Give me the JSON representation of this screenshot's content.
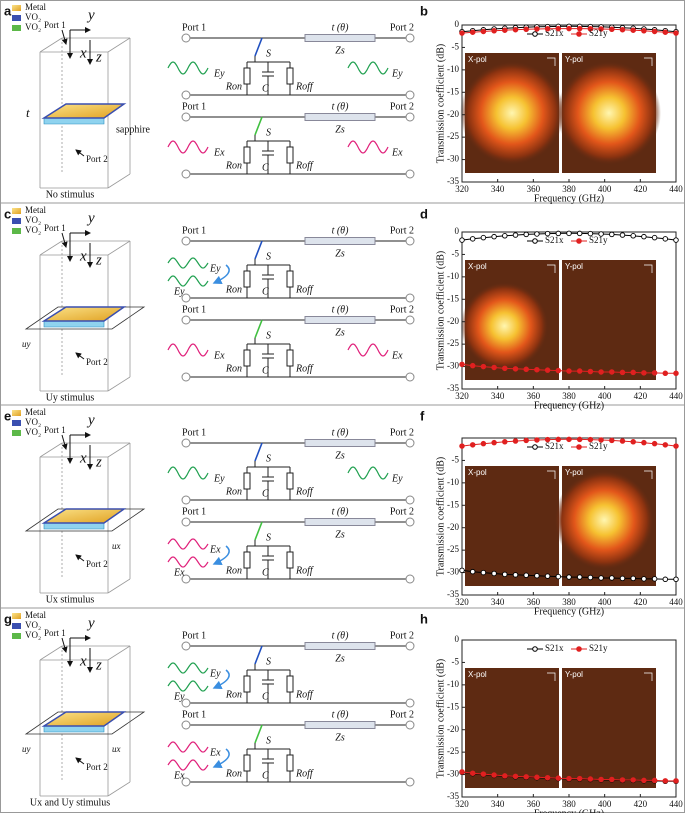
{
  "panels": [
    {
      "label": "a",
      "legend": [
        "Metal",
        "VO₂",
        "VO₂"
      ],
      "axes": [
        "y",
        "x",
        "z"
      ],
      "ports": [
        "Port 1",
        "Port 2"
      ],
      "thickness": "t",
      "substrate": "sapphire",
      "caption": "No stimulus",
      "circuits": [
        {
          "port_in": "Port 1",
          "port_out": "Port 2",
          "line": "t (θ)",
          "impedance": "Zs",
          "switch": "S",
          "r_on": "Ron",
          "cap": "C",
          "r_off": "Roff",
          "wave_in": "Ey",
          "wave_out": "Ey"
        },
        {
          "port_in": "Port 1",
          "port_out": "Port 2",
          "line": "t (θ)",
          "impedance": "Zs",
          "switch": "S",
          "r_on": "Ron",
          "cap": "C",
          "r_off": "Roff",
          "wave_in": "Ex",
          "wave_out": "Ex"
        }
      ]
    },
    {
      "label": "c",
      "legend": [
        "Metal",
        "VO₂",
        "VO₂"
      ],
      "axes": [
        "y",
        "x",
        "z"
      ],
      "ports": [
        "Port 1",
        "Port 2"
      ],
      "electrodes": [
        "uy"
      ],
      "caption": "Uy stimulus",
      "circuits": [
        {
          "port_in": "Port 1",
          "port_out": "Port 2",
          "line": "t (θ)",
          "impedance": "Zs",
          "switch": "S",
          "r_on": "Ron",
          "cap": "C",
          "r_off": "Roff",
          "wave_in": "Ey",
          "wave_reflected": "Ey"
        },
        {
          "port_in": "Port 1",
          "port_out": "Port 2",
          "line": "t (θ)",
          "impedance": "Zs",
          "switch": "S",
          "r_on": "Ron",
          "cap": "C",
          "r_off": "Roff",
          "wave_in": "Ex",
          "wave_out": "Ex"
        }
      ]
    },
    {
      "label": "e",
      "legend": [
        "Metal",
        "VO₂",
        "VO₂"
      ],
      "axes": [
        "y",
        "x",
        "z"
      ],
      "ports": [
        "Port 1",
        "Port 2"
      ],
      "electrodes": [
        "ux"
      ],
      "caption": "Ux stimulus",
      "circuits": [
        {
          "port_in": "Port 1",
          "port_out": "Port 2",
          "line": "t (θ)",
          "impedance": "Zs",
          "switch": "S",
          "r_on": "Ron",
          "cap": "C",
          "r_off": "Roff",
          "wave_in": "Ey",
          "wave_out": "Ey"
        },
        {
          "port_in": "Port 1",
          "port_out": "Port 2",
          "line": "t (θ)",
          "impedance": "Zs",
          "switch": "S",
          "r_on": "Ron",
          "cap": "C",
          "r_off": "Roff",
          "wave_in": "Ex",
          "wave_reflected": "Ex"
        }
      ]
    },
    {
      "label": "g",
      "legend": [
        "Metal",
        "VO₂",
        "VO₂"
      ],
      "axes": [
        "y",
        "x",
        "z"
      ],
      "ports": [
        "Port 1",
        "Port 2"
      ],
      "electrodes": [
        "uy",
        "ux"
      ],
      "caption": "Ux and Uy stimulus",
      "circuits": [
        {
          "port_in": "Port 1",
          "port_out": "Port 2",
          "line": "t (θ)",
          "impedance": "Zs",
          "switch": "S",
          "r_on": "Ron",
          "cap": "C",
          "r_off": "Roff",
          "wave_in": "Ey",
          "wave_reflected": "Ey"
        },
        {
          "port_in": "Port 1",
          "port_out": "Port 2",
          "line": "t (θ)",
          "impedance": "Zs",
          "switch": "S",
          "r_on": "Ron",
          "cap": "C",
          "r_off": "Roff",
          "wave_in": "Ex",
          "wave_reflected": "Ex"
        }
      ]
    }
  ],
  "chart_data": [
    {
      "type": "line",
      "panel_label": "b",
      "x_label": "Frequency (GHz)",
      "y_label": "Transmission coefficient (dB)",
      "insets": [
        "X-pol",
        "Y-pol"
      ],
      "legend": "top",
      "x": [
        320,
        326,
        332,
        338,
        344,
        350,
        356,
        362,
        368,
        374,
        380,
        386,
        392,
        398,
        404,
        410,
        416,
        422,
        428,
        434,
        440
      ],
      "xlim": [
        320,
        440
      ],
      "xticks": [
        320,
        340,
        360,
        380,
        400,
        420,
        440
      ],
      "ylim": [
        -35,
        0
      ],
      "yticks": [
        0,
        -5,
        -10,
        -15,
        -20,
        -25,
        -30,
        -35
      ],
      "series": [
        {
          "name": "S21x",
          "color": "#000000",
          "values": [
            -1.5,
            -1.27,
            -1.07,
            -0.89,
            -0.73,
            -0.6,
            -0.49,
            -0.41,
            -0.35,
            -0.31,
            -0.3,
            -0.31,
            -0.35,
            -0.41,
            -0.49,
            -0.6,
            -0.73,
            -0.89,
            -1.07,
            -1.27,
            -1.5
          ]
        },
        {
          "name": "S21y",
          "color": "#e02020",
          "values": [
            -1.8,
            -1.61,
            -1.44,
            -1.29,
            -1.16,
            -1.05,
            -0.96,
            -0.89,
            -0.84,
            -0.81,
            -0.8,
            -0.81,
            -0.84,
            -0.89,
            -0.96,
            -1.05,
            -1.16,
            -1.29,
            -1.44,
            -1.61,
            -1.8
          ]
        }
      ]
    },
    {
      "type": "line",
      "panel_label": "d",
      "x_label": "Frequency (GHz)",
      "y_label": "Transmission coefficient (dB)",
      "insets": [
        "X-pol",
        "Y-pol"
      ],
      "legend": "top",
      "x": [
        320,
        326,
        332,
        338,
        344,
        350,
        356,
        362,
        368,
        374,
        380,
        386,
        392,
        398,
        404,
        410,
        416,
        422,
        428,
        434,
        440
      ],
      "xlim": [
        320,
        440
      ],
      "xticks": [
        320,
        340,
        360,
        380,
        400,
        420,
        440
      ],
      "ylim": [
        -35,
        0
      ],
      "yticks": [
        0,
        -5,
        -10,
        -15,
        -20,
        -25,
        -30,
        -35
      ],
      "series": [
        {
          "name": "S21x",
          "color": "#000000",
          "values": [
            -1.8,
            -1.52,
            -1.26,
            -1.04,
            -0.84,
            -0.68,
            -0.54,
            -0.44,
            -0.36,
            -0.32,
            -0.3,
            -0.32,
            -0.36,
            -0.44,
            -0.54,
            -0.68,
            -0.84,
            -1.04,
            -1.26,
            -1.52,
            -1.8
          ]
        },
        {
          "name": "S21y",
          "color": "#e02020",
          "values": [
            -29.5,
            -29.8,
            -30.0,
            -30.2,
            -30.4,
            -30.5,
            -30.6,
            -30.7,
            -30.8,
            -30.9,
            -31.0,
            -31.0,
            -31.1,
            -31.2,
            -31.2,
            -31.3,
            -31.3,
            -31.4,
            -31.4,
            -31.5,
            -31.5
          ]
        }
      ]
    },
    {
      "type": "line",
      "panel_label": "f",
      "x_label": "Frequency (GHz)",
      "y_label": "Transmission coefficient (dB)",
      "insets": [
        "X-pol",
        "Y-pol"
      ],
      "legend": "top",
      "x": [
        320,
        326,
        332,
        338,
        344,
        350,
        356,
        362,
        368,
        374,
        380,
        386,
        392,
        398,
        404,
        410,
        416,
        422,
        428,
        434,
        440
      ],
      "xlim": [
        320,
        440
      ],
      "xticks": [
        320,
        340,
        360,
        380,
        400,
        420,
        440
      ],
      "ylim": [
        -35,
        0
      ],
      "yticks": [
        -5,
        -10,
        -15,
        -20,
        -25,
        -30,
        -35
      ],
      "series": [
        {
          "name": "S21x",
          "color": "#000000",
          "values": [
            -29.5,
            -29.8,
            -30.0,
            -30.2,
            -30.4,
            -30.5,
            -30.6,
            -30.7,
            -30.8,
            -30.9,
            -31.0,
            -31.0,
            -31.1,
            -31.2,
            -31.2,
            -31.3,
            -31.3,
            -31.4,
            -31.4,
            -31.5,
            -31.5
          ]
        },
        {
          "name": "S21y",
          "color": "#e02020",
          "values": [
            -1.8,
            -1.52,
            -1.26,
            -1.04,
            -0.84,
            -0.68,
            -0.54,
            -0.44,
            -0.36,
            -0.32,
            -0.3,
            -0.32,
            -0.36,
            -0.44,
            -0.54,
            -0.68,
            -0.84,
            -1.04,
            -1.26,
            -1.52,
            -1.8
          ]
        }
      ]
    },
    {
      "type": "line",
      "panel_label": "h",
      "x_label": "Frequency (GHz)",
      "y_label": "Transmission coefficient (dB)",
      "insets": [
        "X-pol",
        "Y-pol"
      ],
      "legend": "top",
      "x": [
        320,
        326,
        332,
        338,
        344,
        350,
        356,
        362,
        368,
        374,
        380,
        386,
        392,
        398,
        404,
        410,
        416,
        422,
        428,
        434,
        440
      ],
      "xlim": [
        320,
        440
      ],
      "xticks": [
        320,
        340,
        360,
        380,
        400,
        420,
        440
      ],
      "ylim": [
        -35,
        0
      ],
      "yticks": [
        0,
        -5,
        -10,
        -15,
        -20,
        -25,
        -30,
        -35
      ],
      "series": [
        {
          "name": "S21x",
          "color": "#000000",
          "values": [
            -29.5,
            -29.8,
            -30.0,
            -30.2,
            -30.4,
            -30.5,
            -30.6,
            -30.7,
            -30.8,
            -30.9,
            -31.0,
            -31.0,
            -31.1,
            -31.2,
            -31.2,
            -31.3,
            -31.3,
            -31.4,
            -31.4,
            -31.5,
            -31.5
          ]
        },
        {
          "name": "S21y",
          "color": "#e02020",
          "values": [
            -29.4,
            -29.7,
            -29.9,
            -30.1,
            -30.3,
            -30.4,
            -30.5,
            -30.6,
            -30.7,
            -30.8,
            -30.9,
            -30.9,
            -31.0,
            -31.1,
            -31.1,
            -31.2,
            -31.2,
            -31.3,
            -31.3,
            -31.4,
            -31.4
          ]
        }
      ]
    }
  ]
}
